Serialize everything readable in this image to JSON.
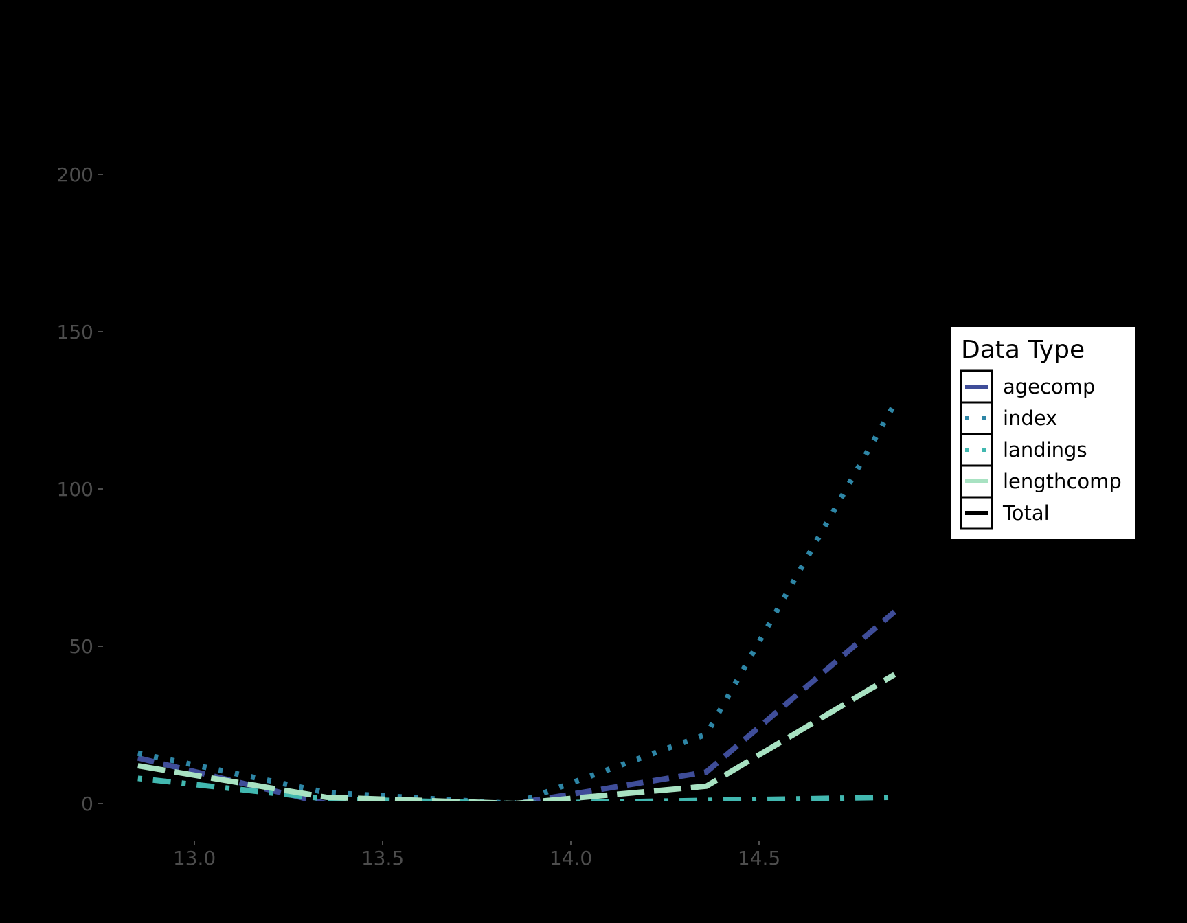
{
  "chart_data": {
    "type": "line",
    "title": "",
    "xlabel": "",
    "ylabel": "",
    "x": [
      12.85,
      13.35,
      13.85,
      14.36,
      14.86
    ],
    "xlim": [
      12.8,
      14.9
    ],
    "ylim": [
      -7,
      215
    ],
    "xticks": [
      13.0,
      13.5,
      14.0,
      14.5
    ],
    "xtick_labels": [
      "13.0",
      "13.5",
      "14.0",
      "14.5"
    ],
    "yticks": [
      0,
      50,
      100,
      150,
      200
    ],
    "ytick_labels": [
      "0",
      "50",
      "100",
      "150",
      "200"
    ],
    "grid": false,
    "legend_position": "right",
    "series": [
      {
        "name": "agecomp",
        "values": [
          14.5,
          0,
          0,
          10,
          61
        ],
        "color": "#3f4d99",
        "dash": "dashed"
      },
      {
        "name": "index",
        "values": [
          16,
          3.5,
          0,
          22,
          127
        ],
        "color": "#2e86a6",
        "dash": "dotted"
      },
      {
        "name": "landings",
        "values": [
          8,
          1.5,
          0,
          1,
          2
        ],
        "color": "#42b8b0",
        "dash": "dotdash"
      },
      {
        "name": "lengthcomp",
        "values": [
          12,
          2,
          0,
          5.5,
          41
        ],
        "color": "#a8e2c2",
        "dash": "longdash"
      },
      {
        "name": "Total",
        "values": [
          0,
          0,
          0,
          0,
          0
        ],
        "color": "#000000",
        "dash": "solid"
      }
    ]
  },
  "legend": {
    "title": "Data Type",
    "items": [
      {
        "label": "agecomp",
        "color": "#3f4d99"
      },
      {
        "label": "index",
        "color": "#2e86a6"
      },
      {
        "label": "landings",
        "color": "#42b8b0"
      },
      {
        "label": "lengthcomp",
        "color": "#a8e2c2"
      },
      {
        "label": "Total",
        "color": "#000000"
      }
    ]
  }
}
